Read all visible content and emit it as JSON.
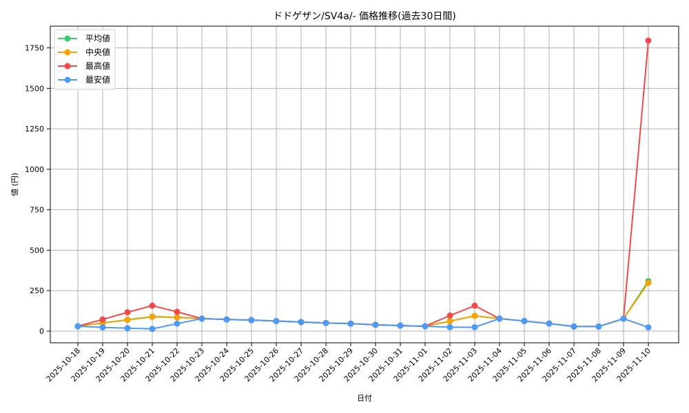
{
  "chart_data": {
    "type": "line",
    "title": "ドドゲザン/SV4a/- 価格推移(過去30日間)",
    "xlabel": "日付",
    "ylabel": "値 (円)",
    "ylim": [
      -70,
      1880
    ],
    "yticks": [
      0,
      250,
      500,
      750,
      1000,
      1250,
      1500,
      1750
    ],
    "grid": true,
    "legend_position": "upper left",
    "categories": [
      "2025-10-18",
      "2025-10-19",
      "2025-10-20",
      "2025-10-21",
      "2025-10-22",
      "2025-10-23",
      "2025-10-24",
      "2025-10-25",
      "2025-10-26",
      "2025-10-27",
      "2025-10-28",
      "2025-10-29",
      "2025-10-30",
      "2025-10-31",
      "2025-11-01",
      "2025-11-02",
      "2025-11-03",
      "2025-11-04",
      "2025-11-05",
      "2025-11-06",
      "2025-11-07",
      "2025-11-08",
      "2025-11-09",
      "2025-11-10"
    ],
    "series": [
      {
        "name": "平均値",
        "color": "#3dcc6e",
        "values": [
          30,
          50,
          70,
          90,
          85,
          77,
          72,
          68,
          62,
          56,
          50,
          46,
          39,
          34,
          30,
          61,
          94,
          77,
          62,
          47,
          28,
          28,
          77,
          309
        ]
      },
      {
        "name": "中央値",
        "color": "#f5a300",
        "values": [
          30,
          50,
          69,
          88,
          84,
          77,
          72,
          68,
          62,
          56,
          50,
          46,
          39,
          34,
          30,
          61,
          94,
          77,
          62,
          47,
          28,
          28,
          77,
          298
        ]
      },
      {
        "name": "最高値",
        "color": "#f04a4a",
        "values": [
          30,
          72,
          116,
          157,
          119,
          77,
          72,
          68,
          62,
          56,
          50,
          46,
          39,
          34,
          30,
          96,
          157,
          77,
          62,
          47,
          28,
          28,
          77,
          1795
        ]
      },
      {
        "name": "最安値",
        "color": "#4d9af5",
        "values": [
          30,
          23,
          18,
          14,
          46,
          77,
          72,
          68,
          62,
          56,
          50,
          46,
          39,
          34,
          30,
          24,
          24,
          77,
          62,
          47,
          28,
          28,
          77,
          23
        ]
      }
    ]
  }
}
